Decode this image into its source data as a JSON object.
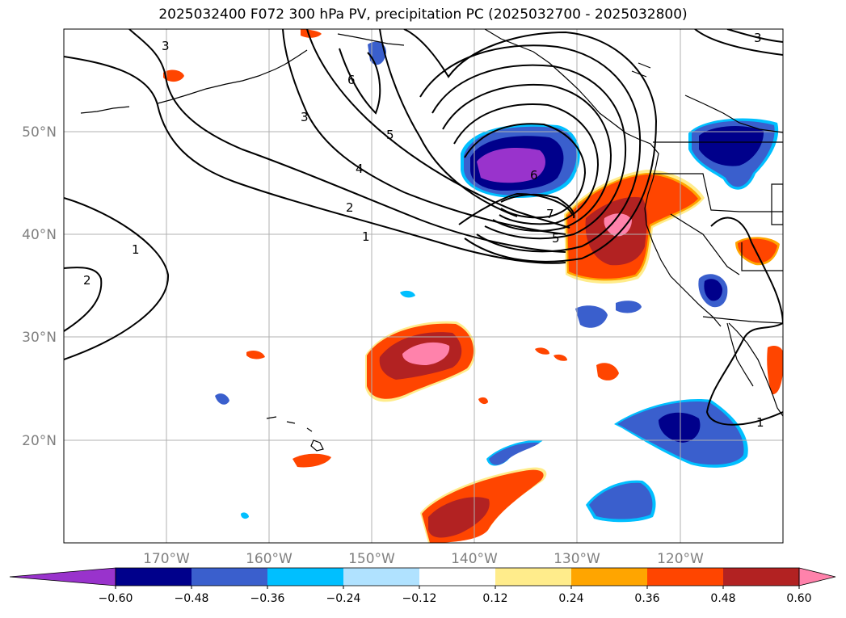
{
  "title": "2025032400 F072 300 hPa PV, precipitation PC (2025032700 - 2025032800)",
  "lon_ticks": [
    "170°W",
    "160°W",
    "150°W",
    "140°W",
    "130°W",
    "120°W"
  ],
  "lat_ticks": [
    "50°N",
    "40°N",
    "30°N",
    "20°N"
  ],
  "contour_labels": [
    "3",
    "3",
    "6",
    "3",
    "5",
    "4",
    "2",
    "1",
    "6",
    "7",
    "5",
    "1",
    "2",
    "1"
  ],
  "colorbar": {
    "ticks": [
      "−0.60",
      "−0.48",
      "−0.36",
      "−0.24",
      "−0.12",
      "0.12",
      "0.24",
      "0.36",
      "0.48",
      "0.60"
    ],
    "colors": [
      "#9933cc",
      "#00008b",
      "#3a5fcd",
      "#00bfff",
      "#b0e2ff",
      "#ffffff",
      "#ffec8b",
      "#ffa500",
      "#ff4500",
      "#b22222",
      "#ff82ab"
    ]
  },
  "colors": {
    "coast": "#000000",
    "contour": "#000000",
    "grid": "#b0b0b0"
  }
}
